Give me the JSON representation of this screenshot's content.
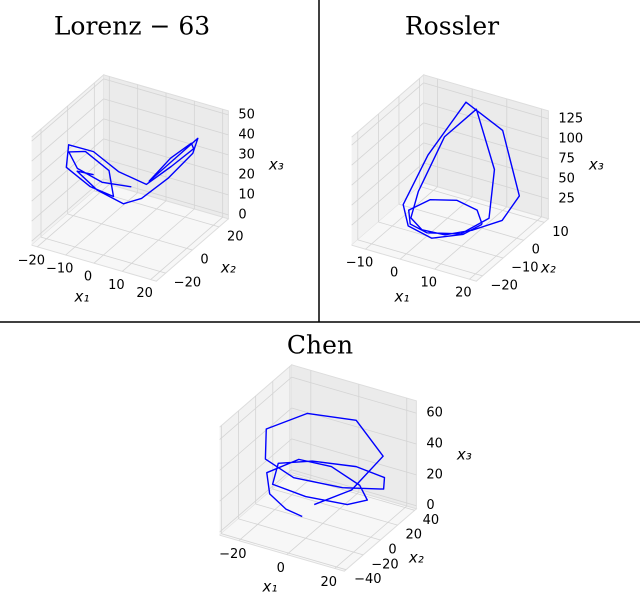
{
  "chart_data": [
    {
      "type": "line3d",
      "title": "Lorenz − 63",
      "xlabel": "x₁",
      "ylabel": "x₂",
      "zlabel": "x₃",
      "color": "#0000ff",
      "x": [
        0,
        -6,
        -12,
        -15,
        -12,
        -6,
        -3,
        -8,
        -14,
        -16,
        -11,
        -5,
        2,
        8,
        14,
        16,
        12,
        6,
        3,
        9,
        15,
        17,
        12,
        5,
        0,
        -7,
        -13,
        -10
      ],
      "y": [
        1,
        -8,
        -14,
        -14,
        -8,
        -3,
        -6,
        -13,
        -18,
        -12,
        -4,
        2,
        8,
        14,
        18,
        12,
        5,
        2,
        8,
        16,
        19,
        11,
        3,
        -2,
        -5,
        -10,
        -12,
        -6
      ],
      "z": [
        20,
        25,
        33,
        40,
        38,
        28,
        18,
        25,
        35,
        42,
        36,
        25,
        18,
        26,
        35,
        42,
        37,
        25,
        20,
        30,
        40,
        38,
        28,
        18,
        15,
        22,
        30,
        26
      ],
      "xlim": [
        -22,
        22
      ],
      "ylim": [
        -27,
        27
      ],
      "zlim": [
        -2,
        52
      ],
      "xticks": [
        {
          "value": -20,
          "label": "−20"
        },
        {
          "value": -10,
          "label": "−10"
        },
        0,
        10,
        20
      ],
      "yticks": [
        {
          "value": -20,
          "label": "−20"
        },
        0,
        20
      ],
      "zticks": [
        0,
        10,
        20,
        30,
        40,
        50
      ]
    },
    {
      "type": "line3d",
      "title": "Rossler",
      "xlabel": "x₁",
      "ylabel": "x₂",
      "zlabel": "x₃",
      "color": "#0000ff",
      "x": [
        10,
        5,
        -2,
        -8,
        -10,
        -6,
        0,
        8,
        12,
        10,
        3,
        -5,
        -9,
        -7,
        -2,
        4,
        9,
        14,
        16,
        10,
        0,
        -8,
        -11,
        -6,
        2,
        8,
        10
      ],
      "y": [
        0,
        6,
        8,
        5,
        -2,
        -8,
        -10,
        -7,
        0,
        6,
        9,
        7,
        1,
        -6,
        -9,
        -8,
        -3,
        3,
        8,
        10,
        9,
        4,
        -3,
        -9,
        -11,
        -6,
        0
      ],
      "z": [
        5,
        3,
        2,
        2,
        2,
        3,
        4,
        6,
        15,
        60,
        120,
        80,
        20,
        5,
        3,
        2,
        3,
        8,
        30,
        100,
        125,
        60,
        10,
        3,
        2,
        3,
        5
      ],
      "xlim": [
        -14,
        22
      ],
      "ylim": [
        -23,
        12
      ],
      "zlim": [
        0,
        135
      ],
      "xticks": [
        {
          "value": -10,
          "label": "−10"
        },
        0,
        10,
        20
      ],
      "yticks": [
        {
          "value": -20,
          "label": "−20"
        },
        {
          "value": -10,
          "label": "−10"
        },
        0,
        10
      ],
      "zticks": [
        25,
        50,
        75,
        100,
        125
      ]
    },
    {
      "type": "line3d",
      "title": "Chen",
      "xlabel": "x₁",
      "ylabel": "x₂",
      "zlabel": "x₃",
      "color": "#0000ff",
      "x": [
        -5,
        -10,
        -15,
        -18,
        -10,
        0,
        10,
        15,
        12,
        0,
        -12,
        -15,
        -8,
        5,
        15,
        20,
        10,
        -5,
        -15,
        -20,
        -10,
        5,
        18,
        12,
        0
      ],
      "y": [
        -10,
        -15,
        -20,
        -15,
        0,
        10,
        15,
        10,
        -5,
        -20,
        -25,
        -10,
        10,
        25,
        30,
        15,
        -5,
        -20,
        -25,
        -10,
        10,
        25,
        20,
        0,
        -10
      ],
      "z": [
        5,
        10,
        20,
        30,
        35,
        30,
        20,
        15,
        18,
        25,
        30,
        35,
        30,
        25,
        20,
        22,
        28,
        35,
        45,
        55,
        60,
        55,
        40,
        25,
        15
      ],
      "xlim": [
        -28,
        24
      ],
      "ylim": [
        -42,
        42
      ],
      "zlim": [
        -2,
        68
      ],
      "xticks": [
        {
          "value": -20,
          "label": "−20"
        },
        0,
        20
      ],
      "yticks": [
        {
          "value": -40,
          "label": "−40"
        },
        {
          "value": -20,
          "label": "−20"
        },
        0,
        20,
        40
      ],
      "zticks": [
        0,
        20,
        40,
        60
      ]
    }
  ]
}
